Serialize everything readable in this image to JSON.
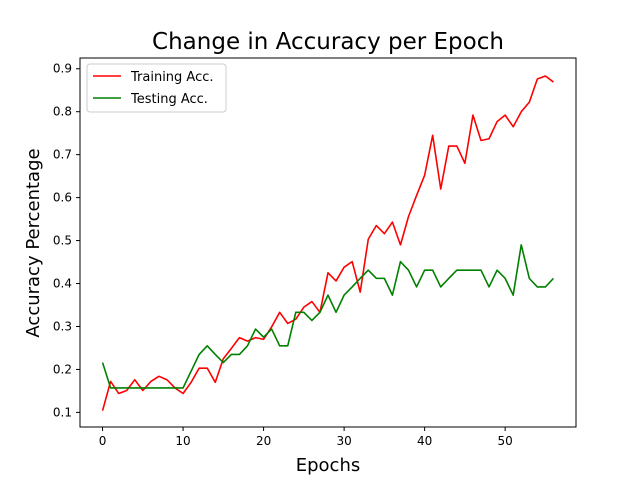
{
  "chart_data": {
    "type": "line",
    "title": "Change in Accuracy per Epoch",
    "xlabel": "Epochs",
    "ylabel": "Accuracy Percentage",
    "xlim": [
      -2.8,
      58.8
    ],
    "ylim": [
      0.066,
      0.925
    ],
    "xticks": [
      0,
      10,
      20,
      30,
      40,
      50
    ],
    "yticks": [
      0.1,
      0.2,
      0.3,
      0.4,
      0.5,
      0.6,
      0.7,
      0.8,
      0.9
    ],
    "grid": false,
    "legend_position": "top-left",
    "series": [
      {
        "name": "Training Acc.",
        "color": "#ff0000",
        "values": [
          0.104,
          0.172,
          0.144,
          0.151,
          0.176,
          0.151,
          0.172,
          0.184,
          0.176,
          0.157,
          0.144,
          0.17,
          0.203,
          0.203,
          0.17,
          0.225,
          0.249,
          0.274,
          0.266,
          0.274,
          0.27,
          0.299,
          0.333,
          0.307,
          0.317,
          0.345,
          0.358,
          0.333,
          0.425,
          0.406,
          0.438,
          0.451,
          0.38,
          0.503,
          0.535,
          0.516,
          0.543,
          0.49,
          0.556,
          0.605,
          0.652,
          0.745,
          0.62,
          0.72,
          0.72,
          0.68,
          0.792,
          0.733,
          0.737,
          0.777,
          0.792,
          0.765,
          0.8,
          0.822,
          0.876,
          0.883,
          0.869
        ]
      },
      {
        "name": "Testing Acc.",
        "color": "#008000",
        "values": [
          0.216,
          0.157,
          0.157,
          0.157,
          0.157,
          0.157,
          0.157,
          0.157,
          0.157,
          0.157,
          0.157,
          0.196,
          0.235,
          0.255,
          0.235,
          0.216,
          0.235,
          0.235,
          0.255,
          0.294,
          0.275,
          0.294,
          0.255,
          0.255,
          0.333,
          0.333,
          0.314,
          0.333,
          0.373,
          0.333,
          0.373,
          0.392,
          0.412,
          0.431,
          0.412,
          0.412,
          0.373,
          0.451,
          0.431,
          0.392,
          0.431,
          0.431,
          0.392,
          0.412,
          0.431,
          0.431,
          0.431,
          0.431,
          0.392,
          0.431,
          0.412,
          0.373,
          0.49,
          0.412,
          0.392,
          0.392,
          0.412
        ]
      }
    ]
  }
}
